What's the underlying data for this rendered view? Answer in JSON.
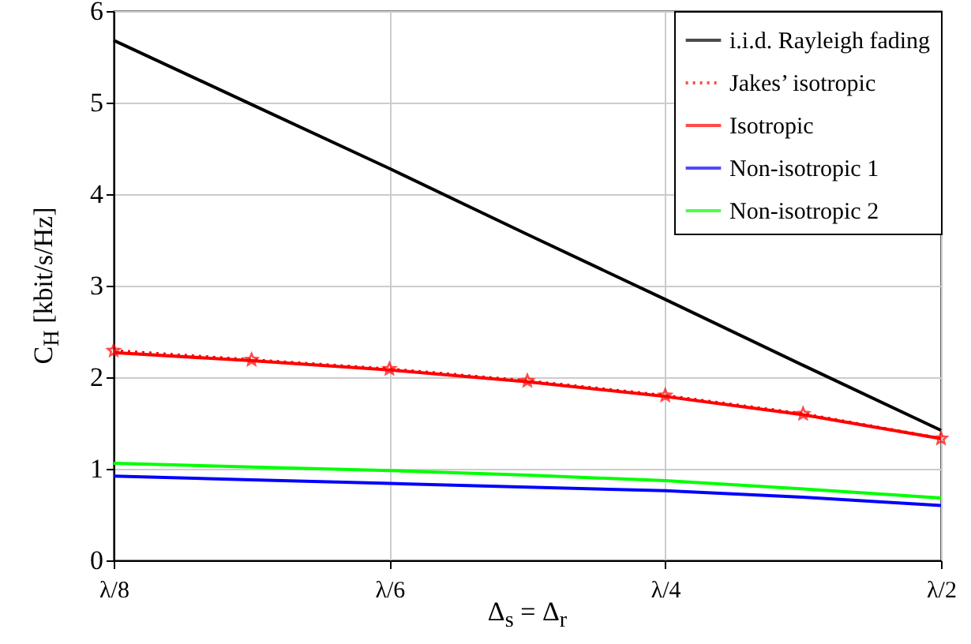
{
  "chart_data": {
    "type": "line",
    "xlabel": "Δ$_{s}$ = Δ$_{r}$",
    "ylabel": "C$_{H}$ [kbit/s/Hz]",
    "categories": [
      "λ/8",
      null,
      "λ/6",
      null,
      "λ/4",
      null,
      "λ/2"
    ],
    "ylim": [
      0,
      6
    ],
    "yticks": [
      0,
      1,
      2,
      3,
      4,
      5,
      6
    ],
    "grid": true,
    "legend": "top right",
    "marker": "none",
    "line_style": "solid",
    "series": [
      {
        "name": "i.i.d. Rayleigh fading",
        "color": "#000000",
        "values": [
          5.68,
          4.98,
          4.28,
          3.56,
          2.85,
          2.13,
          1.42
        ]
      },
      {
        "name": "Jakes’ isotropic",
        "color": "#ff0000",
        "line_style": "dotted",
        "marker": "star",
        "values": [
          2.29,
          2.19,
          2.09,
          1.96,
          1.8,
          1.6,
          1.33
        ]
      },
      {
        "name": "Isotropic",
        "color": "#ff0000",
        "values": [
          2.27,
          2.18,
          2.08,
          1.95,
          1.79,
          1.59,
          1.33
        ]
      },
      {
        "name": "Non-isotropic 1",
        "color": "#0000ff",
        "values": [
          0.92,
          0.88,
          0.84,
          0.8,
          0.76,
          0.69,
          0.6
        ]
      },
      {
        "name": "Non-isotropic 2",
        "color": "#00ff00",
        "values": [
          1.06,
          1.02,
          0.98,
          0.93,
          0.87,
          0.78,
          0.68
        ]
      }
    ]
  }
}
